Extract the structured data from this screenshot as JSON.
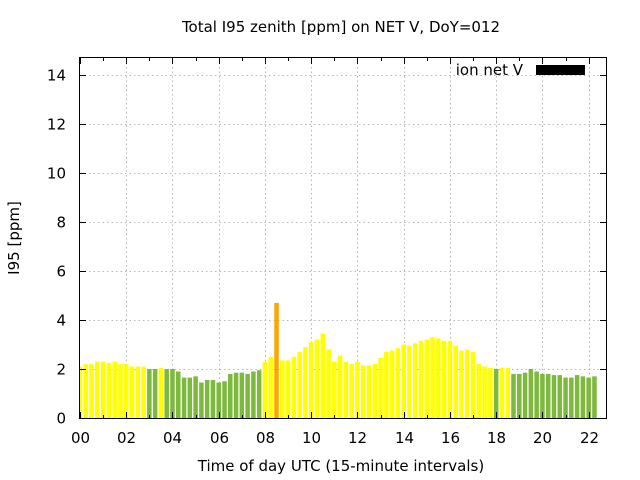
{
  "chart_data": {
    "type": "bar",
    "title": "Total I95 zenith [ppm] on NET V, DoY=012",
    "xlabel": "Time of day UTC (15-minute intervals)",
    "ylabel": "I95 [ppm]",
    "ylim": [
      0,
      14.7
    ],
    "xlim": [
      0,
      22.75
    ],
    "grid": true,
    "legend": {
      "position": "top-right",
      "label": "ion net V",
      "color": "#000000"
    },
    "x_ticks": [
      "00",
      "02",
      "04",
      "06",
      "08",
      "10",
      "12",
      "14",
      "16",
      "18",
      "20",
      "22"
    ],
    "y_ticks": [
      "0",
      "2",
      "4",
      "6",
      "8",
      "10",
      "12",
      "14"
    ],
    "bar_interval_hours": 0.25,
    "colors": {
      "yellow": "#ffff00",
      "green": "#7cb93c",
      "orange": "#ffa500"
    },
    "values": [
      2.1,
      2.2,
      2.2,
      2.3,
      2.3,
      2.25,
      2.3,
      2.2,
      2.2,
      2.1,
      2.1,
      2.1,
      2.0,
      2.0,
      2.05,
      2.0,
      2.0,
      1.9,
      1.65,
      1.65,
      1.7,
      1.45,
      1.55,
      1.55,
      1.45,
      1.5,
      1.8,
      1.85,
      1.85,
      1.8,
      1.9,
      1.95,
      2.3,
      2.5,
      4.7,
      2.35,
      2.35,
      2.5,
      2.7,
      2.9,
      3.1,
      3.2,
      3.45,
      2.8,
      2.3,
      2.55,
      2.3,
      2.2,
      2.3,
      2.15,
      2.15,
      2.2,
      2.45,
      2.7,
      2.75,
      2.85,
      3.0,
      2.95,
      3.05,
      3.15,
      3.2,
      3.3,
      3.25,
      3.15,
      3.15,
      2.95,
      2.75,
      2.8,
      2.7,
      2.2,
      2.1,
      2.05,
      2.0,
      2.05,
      2.05,
      1.8,
      1.8,
      1.85,
      2.0,
      1.9,
      1.8,
      1.8,
      1.75,
      1.75,
      1.65,
      1.65,
      1.75,
      1.7,
      1.65,
      1.7
    ],
    "bar_colors": [
      "yellow",
      "yellow",
      "yellow",
      "yellow",
      "yellow",
      "yellow",
      "yellow",
      "yellow",
      "yellow",
      "yellow",
      "yellow",
      "yellow",
      "green",
      "green",
      "yellow",
      "green",
      "green",
      "green",
      "green",
      "green",
      "green",
      "green",
      "green",
      "green",
      "green",
      "green",
      "green",
      "green",
      "green",
      "green",
      "green",
      "green",
      "yellow",
      "yellow",
      "orange",
      "yellow",
      "yellow",
      "yellow",
      "yellow",
      "yellow",
      "yellow",
      "yellow",
      "yellow",
      "yellow",
      "yellow",
      "yellow",
      "yellow",
      "yellow",
      "yellow",
      "yellow",
      "yellow",
      "yellow",
      "yellow",
      "yellow",
      "yellow",
      "yellow",
      "yellow",
      "yellow",
      "yellow",
      "yellow",
      "yellow",
      "yellow",
      "yellow",
      "yellow",
      "yellow",
      "yellow",
      "yellow",
      "yellow",
      "yellow",
      "yellow",
      "yellow",
      "yellow",
      "green",
      "yellow",
      "yellow",
      "green",
      "green",
      "green",
      "green",
      "green",
      "green",
      "green",
      "green",
      "green",
      "green",
      "green",
      "green",
      "green",
      "green",
      "green"
    ]
  }
}
